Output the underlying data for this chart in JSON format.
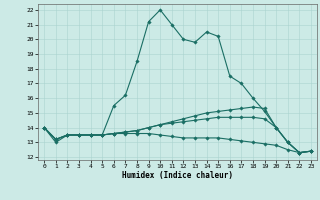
{
  "xlabel": "Humidex (Indice chaleur)",
  "ylabel": "",
  "bg_color": "#cceae6",
  "line_color": "#1a6e64",
  "grid_color": "#aad4cf",
  "xlim": [
    -0.5,
    23.5
  ],
  "ylim": [
    11.8,
    22.4
  ],
  "yticks": [
    12,
    13,
    14,
    15,
    16,
    17,
    18,
    19,
    20,
    21,
    22
  ],
  "xticks": [
    0,
    1,
    2,
    3,
    4,
    5,
    6,
    7,
    8,
    9,
    10,
    11,
    12,
    13,
    14,
    15,
    16,
    17,
    18,
    19,
    20,
    21,
    22,
    23
  ],
  "line1_x": [
    0,
    1,
    2,
    3,
    4,
    5,
    6,
    7,
    8,
    9,
    10,
    11,
    12,
    13,
    14,
    15,
    16,
    17,
    18,
    19,
    20,
    21,
    22,
    23
  ],
  "line1_y": [
    14.0,
    13.0,
    13.5,
    13.5,
    13.5,
    13.5,
    15.5,
    16.2,
    18.5,
    21.2,
    22.0,
    21.0,
    20.0,
    19.8,
    20.5,
    20.2,
    17.5,
    17.0,
    16.0,
    15.1,
    14.0,
    13.0,
    12.3,
    12.4
  ],
  "line2_x": [
    0,
    1,
    2,
    3,
    4,
    5,
    6,
    7,
    8,
    9,
    10,
    11,
    12,
    13,
    14,
    15,
    16,
    17,
    18,
    19,
    20,
    21,
    22,
    23
  ],
  "line2_y": [
    14.0,
    13.2,
    13.5,
    13.5,
    13.5,
    13.5,
    13.6,
    13.7,
    13.8,
    14.0,
    14.2,
    14.4,
    14.6,
    14.8,
    15.0,
    15.1,
    15.2,
    15.3,
    15.4,
    15.3,
    14.0,
    13.0,
    12.3,
    12.4
  ],
  "line3_x": [
    0,
    1,
    2,
    3,
    4,
    5,
    6,
    7,
    8,
    9,
    10,
    11,
    12,
    13,
    14,
    15,
    16,
    17,
    18,
    19,
    20,
    21,
    22,
    23
  ],
  "line3_y": [
    14.0,
    13.2,
    13.5,
    13.5,
    13.5,
    13.5,
    13.6,
    13.7,
    13.8,
    14.0,
    14.2,
    14.3,
    14.4,
    14.5,
    14.6,
    14.7,
    14.7,
    14.7,
    14.7,
    14.6,
    14.0,
    13.0,
    12.3,
    12.4
  ],
  "line4_x": [
    0,
    1,
    2,
    3,
    4,
    5,
    6,
    7,
    8,
    9,
    10,
    11,
    12,
    13,
    14,
    15,
    16,
    17,
    18,
    19,
    20,
    21,
    22,
    23
  ],
  "line4_y": [
    14.0,
    13.2,
    13.5,
    13.5,
    13.5,
    13.5,
    13.6,
    13.6,
    13.6,
    13.6,
    13.5,
    13.4,
    13.3,
    13.3,
    13.3,
    13.3,
    13.2,
    13.1,
    13.0,
    12.9,
    12.8,
    12.5,
    12.3,
    12.4
  ],
  "tick_fontsize": 4.5,
  "xlabel_fontsize": 5.5,
  "linewidth": 0.8,
  "markersize": 1.8
}
